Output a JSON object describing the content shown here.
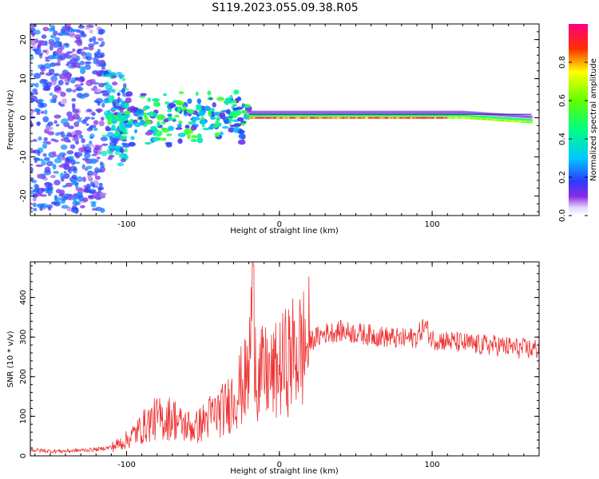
{
  "title": "S119.2023.055.09.38.R05",
  "chart_data": [
    {
      "type": "heatmap",
      "xlabel": "Height of straight line (km)",
      "ylabel": "Frequency (Hz)",
      "xlim": [
        -163,
        170
      ],
      "ylim": [
        -25,
        24
      ],
      "xticks": [
        -100,
        0,
        100
      ],
      "yticks": [
        -20,
        -10,
        0,
        10,
        20
      ],
      "colorbar": {
        "label": "Normalized spectral amplitude",
        "range": [
          0,
          1
        ],
        "ticks": [
          0.0,
          0.2,
          0.4,
          0.6,
          0.8
        ]
      },
      "description_series": [
        {
          "x_start": -163,
          "x_end": -115,
          "freq_spread": 24,
          "amplitude": 0.15
        },
        {
          "x_start": -115,
          "x_end": -100,
          "freq_spread": 12,
          "amplitude": 0.25
        },
        {
          "x_start": -112,
          "x_end": -20,
          "freq_center": 0,
          "freq_spread": 6,
          "amplitude": 0.45
        },
        {
          "x_start": -20,
          "x_end": 165,
          "freq_center": 0,
          "freq_spread": 1,
          "amplitude": 0.9
        }
      ]
    },
    {
      "type": "line",
      "xlabel": "Height of straight line (km)",
      "ylabel": "SNR (10 * v/v)",
      "xlim": [
        -163,
        170
      ],
      "ylim": [
        0,
        490
      ],
      "xticks": [
        -100,
        0,
        100
      ],
      "yticks": [
        0,
        100,
        200,
        300,
        400
      ],
      "grid": false,
      "color": "#ee3333",
      "series": [
        {
          "x": [
            -163,
            -150,
            -140,
            -130,
            -120,
            -110,
            -105,
            -100,
            -95,
            -90,
            -85,
            -80,
            -75,
            -70,
            -65,
            -60,
            -55,
            -50,
            -45,
            -40,
            -35,
            -30,
            -25,
            -20,
            -17,
            -15,
            -10,
            -5,
            0,
            5,
            10,
            15,
            20,
            25,
            30,
            40,
            50,
            60,
            70,
            80,
            90,
            95,
            100,
            110,
            120,
            130,
            140,
            150,
            160,
            170
          ],
          "y": [
            15,
            12,
            12,
            14,
            16,
            22,
            30,
            40,
            55,
            70,
            85,
            95,
            90,
            100,
            80,
            75,
            70,
            85,
            100,
            110,
            120,
            150,
            175,
            200,
            480,
            190,
            210,
            200,
            220,
            240,
            260,
            270,
            290,
            300,
            310,
            315,
            310,
            305,
            300,
            295,
            300,
            330,
            295,
            290,
            285,
            280,
            280,
            275,
            270,
            270
          ]
        }
      ]
    }
  ]
}
